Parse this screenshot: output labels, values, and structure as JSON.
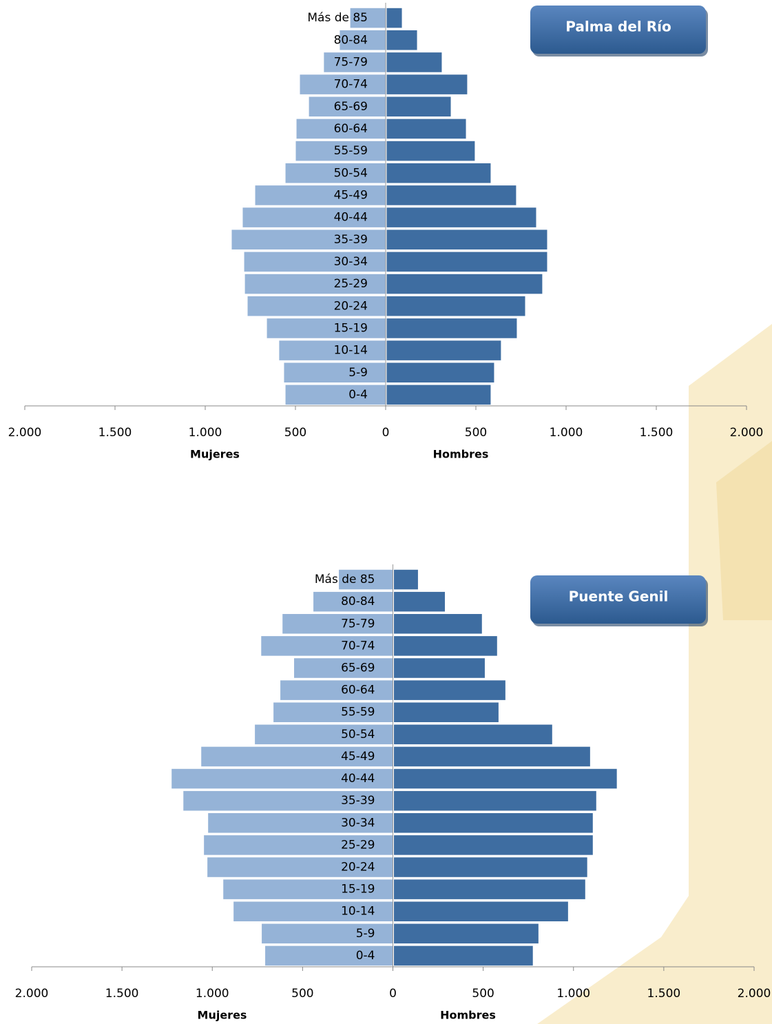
{
  "chart_data": [
    {
      "type": "pyramid",
      "title": "Palma del Río",
      "categories": [
        "0-4",
        "5-9",
        "10-14",
        "15-19",
        "20-24",
        "25-29",
        "30-34",
        "35-39",
        "40-44",
        "45-49",
        "50-54",
        "55-59",
        "60-64",
        "65-69",
        "70-74",
        "75-79",
        "80-84",
        "Más de 85"
      ],
      "series": [
        {
          "name": "Mujeres",
          "color": "#95b3d7",
          "values": [
            557,
            565,
            592,
            660,
            767,
            782,
            786,
            855,
            794,
            725,
            557,
            500,
            496,
            427,
            477,
            344,
            256,
            198
          ]
        },
        {
          "name": "Hombres",
          "color": "#3e6da1",
          "values": [
            580,
            599,
            637,
            725,
            771,
            866,
            893,
            893,
            832,
            721,
            580,
            492,
            443,
            359,
            450,
            309,
            172,
            88
          ]
        }
      ],
      "xlim": [
        -2000,
        2000
      ],
      "xticks": [
        {
          "value": -2000,
          "label": "2.000"
        },
        {
          "value": -1500,
          "label": "1.500"
        },
        {
          "value": -1000,
          "label": "1.000"
        },
        {
          "value": -500,
          "label": "500"
        },
        0,
        500,
        {
          "value": 1000,
          "label": "1.000"
        },
        {
          "value": 1500,
          "label": "1.500"
        },
        {
          "value": 2000,
          "label": "2.000"
        }
      ]
    },
    {
      "type": "pyramid",
      "title": "Puente Genil",
      "categories": [
        "0-4",
        "5-9",
        "10-14",
        "15-19",
        "20-24",
        "25-29",
        "30-34",
        "35-39",
        "40-44",
        "45-49",
        "50-54",
        "55-59",
        "60-64",
        "65-69",
        "70-74",
        "75-79",
        "80-84",
        "Más de 85"
      ],
      "series": [
        {
          "name": "Mujeres",
          "color": "#95b3d7",
          "values": [
            709,
            728,
            884,
            941,
            1029,
            1048,
            1025,
            1162,
            1227,
            1063,
            766,
            663,
            625,
            549,
            731,
            613,
            442,
            301
          ]
        },
        {
          "name": "Hombres",
          "color": "#3e6da1",
          "values": [
            773,
            804,
            968,
            1063,
            1074,
            1105,
            1105,
            1124,
            1238,
            1090,
            880,
            583,
            621,
            507,
            575,
            491,
            286,
            137
          ]
        }
      ],
      "xlim": [
        -2000,
        2000
      ],
      "xticks": [
        {
          "value": -2000,
          "label": "2.000"
        },
        {
          "value": -1500,
          "label": "1.500"
        },
        {
          "value": -1000,
          "label": "1.000"
        },
        {
          "value": -500,
          "label": "500"
        },
        0,
        500,
        {
          "value": 1000,
          "label": "1.000"
        },
        {
          "value": 1500,
          "label": "1.500"
        },
        {
          "value": 2000,
          "label": "2.000"
        }
      ]
    }
  ]
}
